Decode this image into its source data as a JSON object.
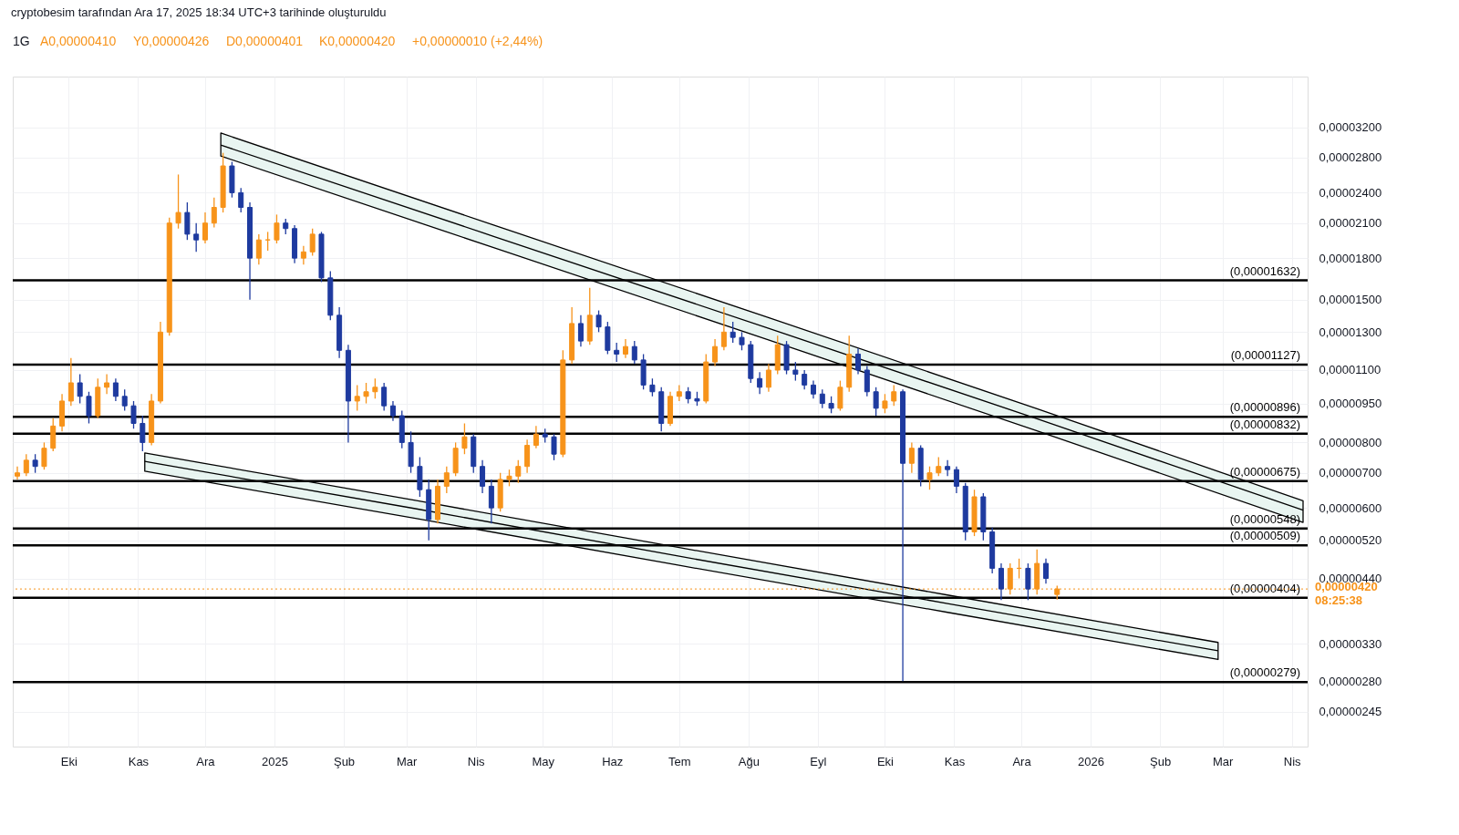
{
  "chart_data": {
    "type": "candlestick",
    "title": "1G",
    "subtitle": "cryptobesim tarafından Ara 17, 2025 18:34 UTC+3 tarihinde oluşturuldu",
    "annotations": [
      "A0,00000410",
      "Y0,00000426",
      "D0,00000401",
      "K0,00000420",
      "+0,00000010 (+2,44%)"
    ],
    "x": [
      "2024-09-08",
      "2024-09-12",
      "2024-09-16",
      "2024-09-20",
      "2024-09-24",
      "2024-09-28",
      "2024-10-02",
      "2024-10-06",
      "2024-10-10",
      "2024-10-14",
      "2024-10-18",
      "2024-10-22",
      "2024-10-26",
      "2024-10-30",
      "2024-11-03",
      "2024-11-07",
      "2024-11-11",
      "2024-11-15",
      "2024-11-19",
      "2024-11-23",
      "2024-11-27",
      "2024-12-01",
      "2024-12-05",
      "2024-12-09",
      "2024-12-13",
      "2024-12-17",
      "2024-12-21",
      "2024-12-25",
      "2024-12-29",
      "2025-01-02",
      "2025-01-06",
      "2025-01-10",
      "2025-01-14",
      "2025-01-18",
      "2025-01-22",
      "2025-01-26",
      "2025-01-30",
      "2025-02-03",
      "2025-02-07",
      "2025-02-11",
      "2025-02-15",
      "2025-02-19",
      "2025-02-23",
      "2025-02-27",
      "2025-03-03",
      "2025-03-07",
      "2025-03-11",
      "2025-03-15",
      "2025-03-19",
      "2025-03-23",
      "2025-03-27",
      "2025-03-31",
      "2025-04-04",
      "2025-04-08",
      "2025-04-12",
      "2025-04-16",
      "2025-04-20",
      "2025-04-24",
      "2025-04-28",
      "2025-05-02",
      "2025-05-06",
      "2025-05-10",
      "2025-05-14",
      "2025-05-18",
      "2025-05-22",
      "2025-05-26",
      "2025-05-30",
      "2025-06-03",
      "2025-06-07",
      "2025-06-11",
      "2025-06-15",
      "2025-06-19",
      "2025-06-23",
      "2025-06-27",
      "2025-07-01",
      "2025-07-05",
      "2025-07-09",
      "2025-07-13",
      "2025-07-17",
      "2025-07-21",
      "2025-07-25",
      "2025-07-29",
      "2025-08-02",
      "2025-08-06",
      "2025-08-10",
      "2025-08-14",
      "2025-08-18",
      "2025-08-22",
      "2025-08-26",
      "2025-08-30",
      "2025-09-03",
      "2025-09-07",
      "2025-09-11",
      "2025-09-15",
      "2025-09-19",
      "2025-09-23",
      "2025-09-27",
      "2025-10-01",
      "2025-10-05",
      "2025-10-09",
      "2025-10-13",
      "2025-10-17",
      "2025-10-21",
      "2025-10-25",
      "2025-10-29",
      "2025-11-02",
      "2025-11-06",
      "2025-11-10",
      "2025-11-14",
      "2025-11-18",
      "2025-11-22",
      "2025-11-26",
      "2025-11-30",
      "2025-12-04",
      "2025-12-08",
      "2025-12-12",
      "2025-12-17"
    ],
    "ohlc": [
      [
        6.9e-06,
        7.2e-06,
        6.8e-06,
        7e-06
      ],
      [
        7e-06,
        7.6e-06,
        6.9e-06,
        7.4e-06
      ],
      [
        7.4e-06,
        7.6e-06,
        7e-06,
        7.2e-06
      ],
      [
        7.2e-06,
        8e-06,
        7.1e-06,
        7.8e-06
      ],
      [
        7.8e-06,
        8.9e-06,
        7.7e-06,
        8.6e-06
      ],
      [
        8.6e-06,
        9.9e-06,
        8.4e-06,
        9.6e-06
      ],
      [
        9.6e-06,
        1.16e-05,
        9.4e-06,
        1.04e-05
      ],
      [
        1.04e-05,
        1.08e-05,
        9.5e-06,
        9.8e-06
      ],
      [
        9.8e-06,
        1e-05,
        8.7e-06,
        9e-06
      ],
      [
        9e-06,
        1.06e-05,
        8.9e-06,
        1.02e-05
      ],
      [
        1.02e-05,
        1.08e-05,
        9.9e-06,
        1.04e-05
      ],
      [
        1.04e-05,
        1.06e-05,
        9.6e-06,
        9.8e-06
      ],
      [
        9.8e-06,
        1.01e-05,
        9.2e-06,
        9.4e-06
      ],
      [
        9.4e-06,
        9.6e-06,
        8.5e-06,
        8.7e-06
      ],
      [
        8.7e-06,
        9e-06,
        7.7e-06,
        8e-06
      ],
      [
        8e-06,
        9.9e-06,
        7.9e-06,
        9.6e-06
      ],
      [
        9.6e-06,
        1.36e-05,
        9.5e-06,
        1.3e-05
      ],
      [
        1.3e-05,
        2.15e-05,
        1.28e-05,
        2.1e-05
      ],
      [
        2.1e-05,
        2.6e-05,
        2.05e-05,
        2.2e-05
      ],
      [
        2.2e-05,
        2.3e-05,
        1.95e-05,
        2e-05
      ],
      [
        2e-05,
        2.1e-05,
        1.85e-05,
        1.95e-05
      ],
      [
        1.95e-05,
        2.2e-05,
        1.92e-05,
        2.1e-05
      ],
      [
        2.1e-05,
        2.35e-05,
        2.06e-05,
        2.25e-05
      ],
      [
        2.25e-05,
        2.86e-05,
        2.2e-05,
        2.7e-05
      ],
      [
        2.7e-05,
        2.75e-05,
        2.35e-05,
        2.4e-05
      ],
      [
        2.4e-05,
        2.45e-05,
        2.2e-05,
        2.25e-05
      ],
      [
        2.25e-05,
        2.3e-05,
        1.5e-05,
        1.8e-05
      ],
      [
        1.8e-05,
        2e-05,
        1.75e-05,
        1.95e-05
      ],
      [
        1.95e-05,
        2.02e-05,
        1.86e-05,
        1.95e-05
      ],
      [
        1.95e-05,
        2.18e-05,
        1.92e-05,
        2.1e-05
      ],
      [
        2.1e-05,
        2.14e-05,
        2e-05,
        2.05e-05
      ],
      [
        2.05e-05,
        2.08e-05,
        1.76e-05,
        1.8e-05
      ],
      [
        1.8e-05,
        1.9e-05,
        1.75e-05,
        1.85e-05
      ],
      [
        1.85e-05,
        2.05e-05,
        1.82e-05,
        2e-05
      ],
      [
        2e-05,
        2.02e-05,
        1.62e-05,
        1.65e-05
      ],
      [
        1.65e-05,
        1.7e-05,
        1.37e-05,
        1.4e-05
      ],
      [
        1.4e-05,
        1.45e-05,
        1.16e-05,
        1.2e-05
      ],
      [
        1.2e-05,
        1.23e-05,
        8e-06,
        9.6e-06
      ],
      [
        9.6e-06,
        1.03e-05,
        9.2e-06,
        9.8e-06
      ],
      [
        9.8e-06,
        1.04e-05,
        9.5e-06,
        1e-05
      ],
      [
        1e-05,
        1.06e-05,
        9.7e-06,
        1.02e-05
      ],
      [
        1.02e-05,
        1.04e-05,
        9.2e-06,
        9.4e-06
      ],
      [
        9.4e-06,
        9.6e-06,
        8.8e-06,
        9e-06
      ],
      [
        9e-06,
        9.2e-06,
        7.8e-06,
        8e-06
      ],
      [
        8e-06,
        8.4e-06,
        7e-06,
        7.2e-06
      ],
      [
        7.2e-06,
        7.5e-06,
        6.3e-06,
        6.5e-06
      ],
      [
        6.5e-06,
        6.8e-06,
        5.2e-06,
        5.7e-06
      ],
      [
        5.7e-06,
        6.8e-06,
        5.6e-06,
        6.6e-06
      ],
      [
        6.6e-06,
        7.2e-06,
        6.4e-06,
        7e-06
      ],
      [
        7e-06,
        8e-06,
        6.9e-06,
        7.8e-06
      ],
      [
        7.8e-06,
        8.7e-06,
        7.6e-06,
        8.2e-06
      ],
      [
        8.2e-06,
        8.3e-06,
        7e-06,
        7.2e-06
      ],
      [
        7.2e-06,
        7.4e-06,
        6.4e-06,
        6.6e-06
      ],
      [
        6.6e-06,
        6.8e-06,
        5.6e-06,
        6e-06
      ],
      [
        6e-06,
        7e-06,
        5.9e-06,
        6.8e-06
      ],
      [
        6.8e-06,
        7.1e-06,
        6.6e-06,
        6.9e-06
      ],
      [
        6.9e-06,
        7.4e-06,
        6.7e-06,
        7.2e-06
      ],
      [
        7.2e-06,
        8.1e-06,
        7e-06,
        7.9e-06
      ],
      [
        7.9e-06,
        8.6e-06,
        7.8e-06,
        8.3e-06
      ],
      [
        8.3e-06,
        8.5e-06,
        8e-06,
        8.2e-06
      ],
      [
        8.2e-06,
        8.3e-06,
        7.4e-06,
        7.6e-06
      ],
      [
        7.6e-06,
        1.2e-05,
        7.5e-06,
        1.15e-05
      ],
      [
        1.15e-05,
        1.45e-05,
        1.13e-05,
        1.35e-05
      ],
      [
        1.35e-05,
        1.4e-05,
        1.22e-05,
        1.25e-05
      ],
      [
        1.25e-05,
        1.58e-05,
        1.23e-05,
        1.4e-05
      ],
      [
        1.4e-05,
        1.43e-05,
        1.3e-05,
        1.33e-05
      ],
      [
        1.33e-05,
        1.36e-05,
        1.18e-05,
        1.2e-05
      ],
      [
        1.2e-05,
        1.24e-05,
        1.14e-05,
        1.18e-05
      ],
      [
        1.18e-05,
        1.26e-05,
        1.16e-05,
        1.22e-05
      ],
      [
        1.22e-05,
        1.25e-05,
        1.13e-05,
        1.15e-05
      ],
      [
        1.15e-05,
        1.18e-05,
        1.01e-05,
        1.03e-05
      ],
      [
        1.03e-05,
        1.06e-05,
        9.8e-06,
        1e-05
      ],
      [
        1e-05,
        1.02e-05,
        8.4e-06,
        8.7e-06
      ],
      [
        8.7e-06,
        1e-05,
        8.6e-06,
        9.8e-06
      ],
      [
        9.8e-06,
        1.03e-05,
        9.6e-06,
        1e-05
      ],
      [
        1e-05,
        1.02e-05,
        9.5e-06,
        9.7e-06
      ],
      [
        9.7e-06,
        1e-05,
        9.4e-06,
        9.6e-06
      ],
      [
        9.6e-06,
        1.18e-05,
        9.5e-06,
        1.14e-05
      ],
      [
        1.14e-05,
        1.26e-05,
        1.12e-05,
        1.22e-05
      ],
      [
        1.22e-05,
        1.45e-05,
        1.2e-05,
        1.3e-05
      ],
      [
        1.3e-05,
        1.36e-05,
        1.24e-05,
        1.27e-05
      ],
      [
        1.27e-05,
        1.3e-05,
        1.2e-05,
        1.23e-05
      ],
      [
        1.23e-05,
        1.25e-05,
        1.04e-05,
        1.06e-05
      ],
      [
        1.06e-05,
        1.09e-05,
        9.9e-06,
        1.02e-05
      ],
      [
        1.02e-05,
        1.13e-05,
        1e-05,
        1.1e-05
      ],
      [
        1.1e-05,
        1.28e-05,
        1.08e-05,
        1.23e-05
      ],
      [
        1.23e-05,
        1.25e-05,
        1.08e-05,
        1.1e-05
      ],
      [
        1.1e-05,
        1.14e-05,
        1.05e-05,
        1.08e-05
      ],
      [
        1.08e-05,
        1.1e-05,
        1.01e-05,
        1.03e-05
      ],
      [
        1.03e-05,
        1.05e-05,
        9.7e-06,
        9.9e-06
      ],
      [
        9.9e-06,
        1.01e-05,
        9.3e-06,
        9.5e-06
      ],
      [
        9.5e-06,
        9.8e-06,
        9.1e-06,
        9.3e-06
      ],
      [
        9.3e-06,
        1.05e-05,
        9.2e-06,
        1.02e-05
      ],
      [
        1.02e-05,
        1.28e-05,
        1e-05,
        1.18e-05
      ],
      [
        1.18e-05,
        1.21e-05,
        1.08e-05,
        1.1e-05
      ],
      [
        1.1e-05,
        1.12e-05,
        9.8e-06,
        1e-05
      ],
      [
        1e-05,
        1.02e-05,
        9e-06,
        9.3e-06
      ],
      [
        9.3e-06,
        9.9e-06,
        9.1e-06,
        9.6e-06
      ],
      [
        9.6e-06,
        1.03e-05,
        9.4e-06,
        1e-05
      ],
      [
        1e-05,
        1.01e-05,
        2.8e-06,
        7.3e-06
      ],
      [
        7.3e-06,
        8e-06,
        7e-06,
        7.8e-06
      ],
      [
        7.8e-06,
        7.9e-06,
        6.6e-06,
        6.8e-06
      ],
      [
        6.8e-06,
        7.2e-06,
        6.5e-06,
        7e-06
      ],
      [
        7e-06,
        7.5e-06,
        6.9e-06,
        7.2e-06
      ],
      [
        7.2e-06,
        7.4e-06,
        6.9e-06,
        7.1e-06
      ],
      [
        7.1e-06,
        7.2e-06,
        6.4e-06,
        6.6e-06
      ],
      [
        6.6e-06,
        6.7e-06,
        5.2e-06,
        5.4e-06
      ],
      [
        5.4e-06,
        6.5e-06,
        5.3e-06,
        6.3e-06
      ],
      [
        6.3e-06,
        6.4e-06,
        5.2e-06,
        5.4e-06
      ],
      [
        5.4e-06,
        5.5e-06,
        4.5e-06,
        4.6e-06
      ],
      [
        4.6e-06,
        4.7e-06,
        4e-06,
        4.2e-06
      ],
      [
        4.2e-06,
        4.7e-06,
        4.1e-06,
        4.6e-06
      ],
      [
        4.6e-06,
        4.8e-06,
        4.4e-06,
        4.6e-06
      ],
      [
        4.6e-06,
        4.7e-06,
        4e-06,
        4.2e-06
      ],
      [
        4.2e-06,
        5e-06,
        4.1e-06,
        4.7e-06
      ],
      [
        4.7e-06,
        4.8e-06,
        4.3e-06,
        4.4e-06
      ],
      [
        4.1e-06,
        4.26e-06,
        4.01e-06,
        4.2e-06
      ]
    ],
    "colors": [
      "#f7931a",
      "#f7931a",
      "#1e3a9f",
      "#f7931a",
      "#f7931a",
      "#f7931a",
      "#f7931a",
      "#1e3a9f",
      "#1e3a9f",
      "#f7931a",
      "#f7931a",
      "#1e3a9f",
      "#1e3a9f",
      "#1e3a9f",
      "#1e3a9f",
      "#f7931a",
      "#f7931a",
      "#f7931a",
      "#f7931a",
      "#1e3a9f",
      "#1e3a9f",
      "#f7931a",
      "#f7931a",
      "#f7931a",
      "#1e3a9f",
      "#1e3a9f",
      "#1e3a9f",
      "#f7931a",
      "#f7931a",
      "#f7931a",
      "#1e3a9f",
      "#1e3a9f",
      "#f7931a",
      "#f7931a",
      "#1e3a9f",
      "#1e3a9f",
      "#1e3a9f",
      "#1e3a9f",
      "#f7931a",
      "#f7931a",
      "#f7931a",
      "#1e3a9f",
      "#1e3a9f",
      "#1e3a9f",
      "#1e3a9f",
      "#1e3a9f",
      "#1e3a9f",
      "#f7931a",
      "#f7931a",
      "#f7931a",
      "#f7931a",
      "#1e3a9f",
      "#1e3a9f",
      "#1e3a9f",
      "#f7931a",
      "#f7931a",
      "#f7931a",
      "#f7931a",
      "#f7931a",
      "#1e3a9f",
      "#1e3a9f",
      "#f7931a",
      "#f7931a",
      "#1e3a9f",
      "#f7931a",
      "#1e3a9f",
      "#1e3a9f",
      "#1e3a9f",
      "#f7931a",
      "#1e3a9f",
      "#1e3a9f",
      "#1e3a9f",
      "#1e3a9f",
      "#f7931a",
      "#f7931a",
      "#1e3a9f",
      "#1e3a9f",
      "#f7931a",
      "#f7931a",
      "#f7931a",
      "#1e3a9f",
      "#1e3a9f",
      "#1e3a9f",
      "#1e3a9f",
      "#f7931a",
      "#f7931a",
      "#1e3a9f",
      "#1e3a9f",
      "#1e3a9f",
      "#1e3a9f",
      "#1e3a9f",
      "#1e3a9f",
      "#f7931a",
      "#f7931a",
      "#1e3a9f",
      "#1e3a9f",
      "#1e3a9f",
      "#f7931a",
      "#f7931a",
      "#1e3a9f",
      "#f7931a",
      "#1e3a9f",
      "#f7931a",
      "#f7931a",
      "#1e3a9f",
      "#1e3a9f",
      "#1e3a9f",
      "#f7931a",
      "#1e3a9f",
      "#1e3a9f",
      "#1e3a9f",
      "#f7931a",
      "#f7931a",
      "#1e3a9f",
      "#f7931a",
      "#1e3a9f",
      "#f7931a"
    ],
    "series": [
      {
        "type": "line",
        "color": "#000000",
        "x": [
          "2024-12-08",
          "2025-04-09",
          "2025-08-09",
          "2025-12-08",
          "2026-04-06"
        ],
        "values": [
          2.96e-05,
          1.981e-05,
          1.326e-05,
          8.88e-06,
          5.94e-06
        ],
        "lower": [
          2.82e-05,
          1.885e-05,
          1.26e-05,
          8.42e-06,
          5.63e-06
        ],
        "upper": [
          3.12e-05,
          2.082e-05,
          1.39e-05,
          9.28e-06,
          6.19e-06
        ]
      },
      {
        "type": "line",
        "color": "#000000",
        "x": [
          "2024-11-04",
          "2025-03-05",
          "2025-07-01",
          "2025-10-29",
          "2026-02-27"
        ],
        "values": [
          7.36e-06,
          5.98e-06,
          4.85e-06,
          3.94e-06,
          3.2e-06
        ],
        "lower": [
          7.05e-06,
          5.73e-06,
          4.66e-06,
          3.79e-06,
          3.08e-06
        ],
        "upper": [
          7.64e-06,
          6.2e-06,
          5.04e-06,
          4.09e-06,
          3.32e-06
        ]
      }
    ],
    "ref_lines": [
      {
        "axis": "y",
        "value": 1.632e-05,
        "label": "(0,00001632)",
        "color": "#000000"
      },
      {
        "axis": "y",
        "value": 1.127e-05,
        "label": "(0,00001127)",
        "color": "#000000"
      },
      {
        "axis": "y",
        "value": 8.96e-06,
        "label": "(0,00000896)",
        "color": "#000000"
      },
      {
        "axis": "y",
        "value": 8.32e-06,
        "label": "(0,00000832)",
        "color": "#000000"
      },
      {
        "axis": "y",
        "value": 6.75e-06,
        "label": "(0,00000675)",
        "color": "#000000"
      },
      {
        "axis": "y",
        "value": 5.48e-06,
        "label": "(0,00000548)",
        "color": "#000000"
      },
      {
        "axis": "y",
        "value": 5.09e-06,
        "label": "(0,00000509)",
        "color": "#000000"
      },
      {
        "axis": "y",
        "value": 4.04e-06,
        "label": "(0,00000404)",
        "color": "#000000"
      },
      {
        "axis": "y",
        "value": 2.79e-06,
        "label": "(0,00000279)",
        "color": "#000000"
      },
      {
        "axis": "y",
        "value": 4.2e-06,
        "label": "0,00000420\n08:25:38",
        "color": "#f7931a",
        "line_style": "dotted"
      }
    ],
    "xlim": [
      "2024-09-08",
      "2026-04-06"
    ],
    "xticks": [
      {
        "value": "2024-10-01",
        "label": "Eki"
      },
      {
        "value": "2024-11-01",
        "label": "Kas"
      },
      {
        "value": "2024-12-01",
        "label": "Ara"
      },
      {
        "value": "2025-01-01",
        "label": "2025"
      },
      {
        "value": "2025-02-01",
        "label": "Şub"
      },
      {
        "value": "2025-03-01",
        "label": "Mar"
      },
      {
        "value": "2025-04-01",
        "label": "Nis"
      },
      {
        "value": "2025-05-01",
        "label": "May"
      },
      {
        "value": "2025-06-01",
        "label": "Haz"
      },
      {
        "value": "2025-07-01",
        "label": "Tem"
      },
      {
        "value": "2025-08-01",
        "label": "Ağu"
      },
      {
        "value": "2025-09-01",
        "label": "Eyl"
      },
      {
        "value": "2025-10-01",
        "label": "Eki"
      },
      {
        "value": "2025-11-01",
        "label": "Kas"
      },
      {
        "value": "2025-12-01",
        "label": "Ara"
      },
      {
        "value": "2026-01-01",
        "label": "2026"
      },
      {
        "value": "2026-02-01",
        "label": "Şub"
      },
      {
        "value": "2026-03-01",
        "label": "Mar"
      },
      {
        "value": "2026-04-01",
        "label": "Nis"
      }
    ],
    "ylim": [
      2.1e-06,
      4e-05
    ],
    "log": true,
    "yticks": [
      {
        "value": 3.2e-05,
        "label": "0,00003200"
      },
      {
        "value": 2.8e-05,
        "label": "0,00002800"
      },
      {
        "value": 2.4e-05,
        "label": "0,00002400"
      },
      {
        "value": 2.1e-05,
        "label": "0,00002100"
      },
      {
        "value": 1.8e-05,
        "label": "0,00001800"
      },
      {
        "value": 1.5e-05,
        "label": "0,00001500"
      },
      {
        "value": 1.3e-05,
        "label": "0,00001300"
      },
      {
        "value": 1.1e-05,
        "label": "0,00001100"
      },
      {
        "value": 9.5e-06,
        "label": "0,00000950"
      },
      {
        "value": 8e-06,
        "label": "0,00000800"
      },
      {
        "value": 7e-06,
        "label": "0,00000700"
      },
      {
        "value": 6e-06,
        "label": "0,00000600"
      },
      {
        "value": 5.2e-06,
        "label": "0,00000520"
      },
      {
        "value": 4.4e-06,
        "label": "0,00000440"
      },
      {
        "value": 3.3e-06,
        "label": "0,00000330"
      },
      {
        "value": 2.8e-06,
        "label": "0,00000280"
      },
      {
        "value": 2.45e-06,
        "label": "0,00000245"
      }
    ],
    "grid": true
  }
}
